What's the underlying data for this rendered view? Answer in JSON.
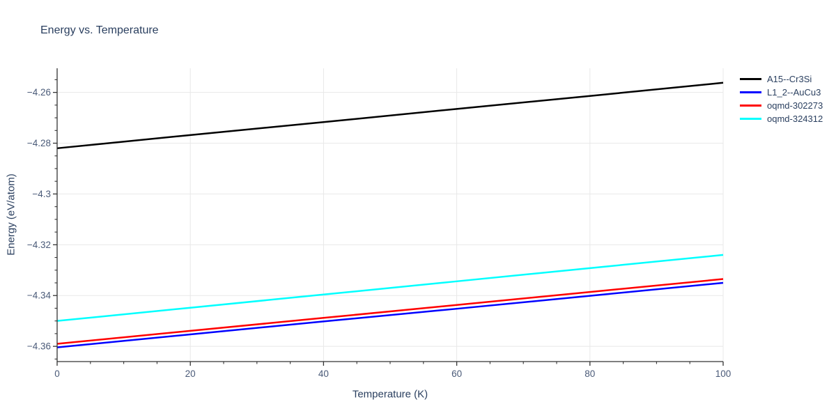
{
  "colors": {
    "title_text": "#2a3f5f",
    "tick_text": "#4a5a78",
    "axis_line": "#333333",
    "grid_line": "#e8e8e8",
    "background": "#ffffff"
  },
  "chart_data": {
    "type": "line",
    "title": "Energy vs. Temperature",
    "xlabel": "Temperature (K)",
    "ylabel": "Energy (eV/atom)",
    "xlim": [
      0,
      100
    ],
    "ylim": [
      -4.366,
      -4.2505
    ],
    "x_ticks": [
      0,
      20,
      40,
      60,
      80,
      100
    ],
    "y_ticks": [
      -4.26,
      -4.28,
      -4.3,
      -4.32,
      -4.34,
      -4.36
    ],
    "x_minor_step": 5,
    "y_minor_step": 0.005,
    "grid": true,
    "legend_position": "top-right-outside",
    "x": [
      0,
      20,
      40,
      60,
      80,
      100
    ],
    "series": [
      {
        "name": "A15--Cr3Si",
        "color": "#000000",
        "values": [
          -4.282,
          -4.2768,
          -4.2717,
          -4.2665,
          -4.2614,
          -4.2562
        ]
      },
      {
        "name": "L1_2--AuCu3",
        "color": "#0000ff",
        "values": [
          -4.3604,
          -4.3553,
          -4.3502,
          -4.3452,
          -4.3401,
          -4.335
        ]
      },
      {
        "name": "oqmd-302273",
        "color": "#ff0000",
        "values": [
          -4.359,
          -4.3539,
          -4.3488,
          -4.3437,
          -4.3386,
          -4.3335
        ]
      },
      {
        "name": "oqmd-324312",
        "color": "#00ffff",
        "values": [
          -4.35,
          -4.3448,
          -4.3396,
          -4.3344,
          -4.3292,
          -4.324
        ]
      }
    ]
  }
}
